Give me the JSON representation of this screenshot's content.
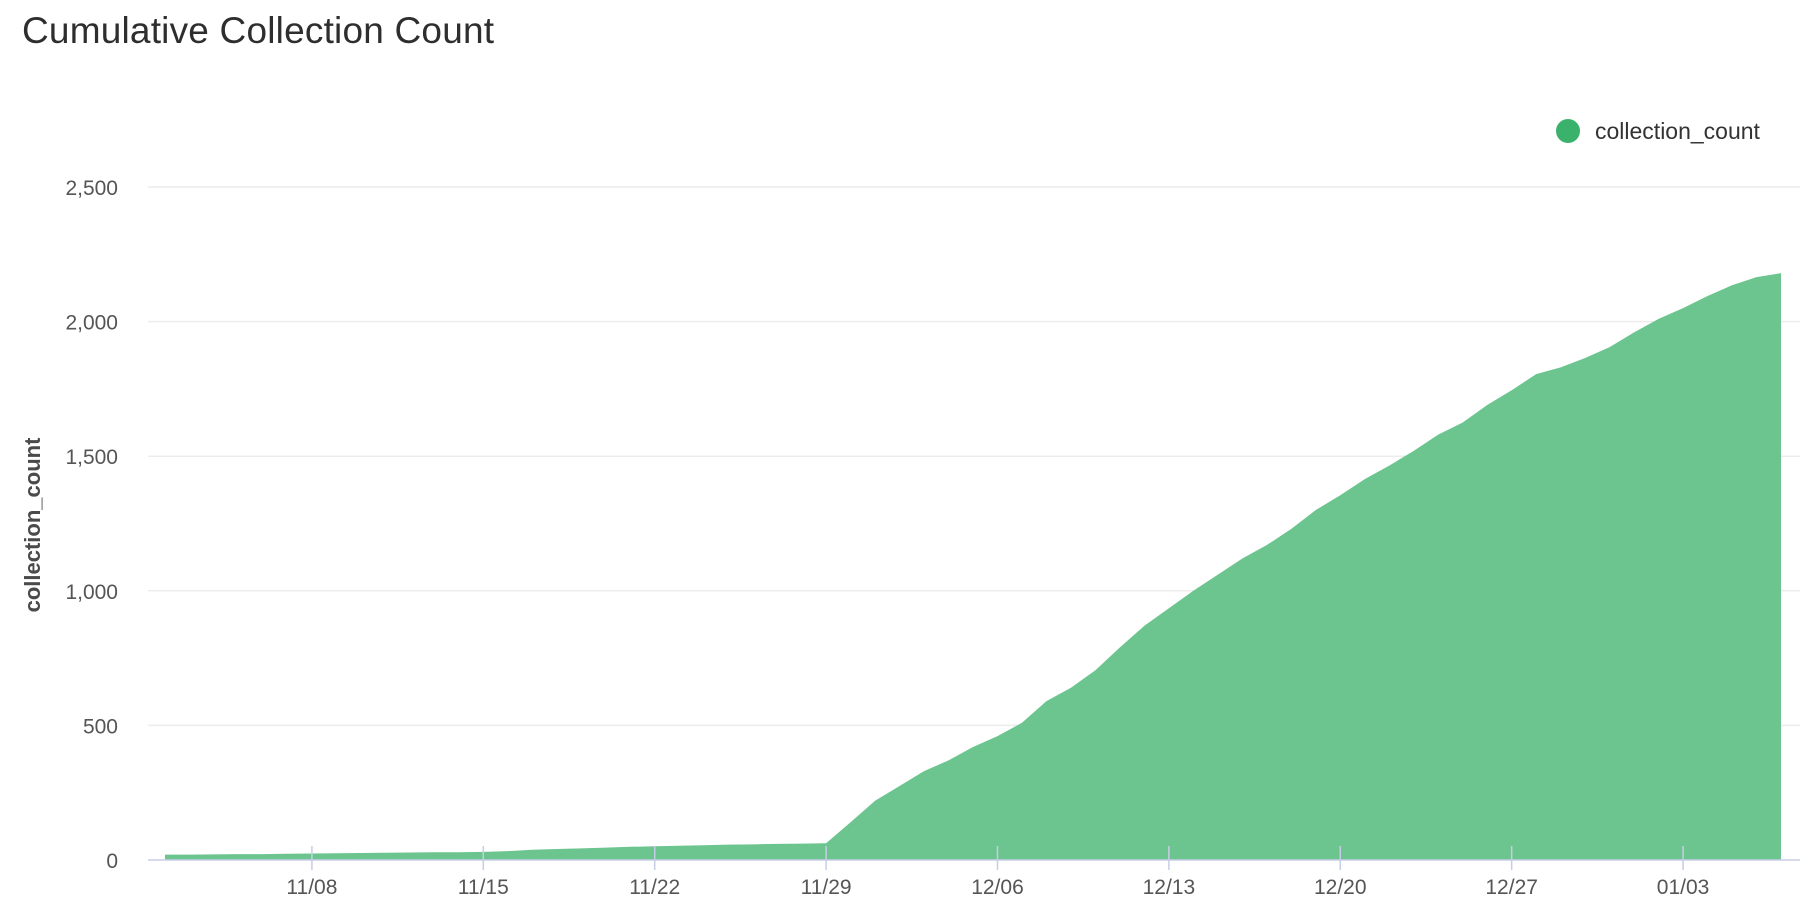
{
  "chart_data": {
    "type": "area",
    "title": "Cumulative Collection Count",
    "xlabel": "",
    "ylabel": "collection_count",
    "ylim": [
      0,
      2500
    ],
    "y_ticks": [
      {
        "value": 0,
        "label": "0"
      },
      {
        "value": 500,
        "label": "500"
      },
      {
        "value": 1000,
        "label": "1,000"
      },
      {
        "value": 1500,
        "label": "1,500"
      },
      {
        "value": 2000,
        "label": "2,000"
      },
      {
        "value": 2500,
        "label": "2,500"
      }
    ],
    "x_ticks": [
      {
        "date": "2020-11-08",
        "label": "11/08"
      },
      {
        "date": "2020-11-15",
        "label": "11/15"
      },
      {
        "date": "2020-11-22",
        "label": "11/22"
      },
      {
        "date": "2020-11-29",
        "label": "11/29"
      },
      {
        "date": "2020-12-06",
        "label": "12/06"
      },
      {
        "date": "2020-12-13",
        "label": "12/13"
      },
      {
        "date": "2020-12-20",
        "label": "12/20"
      },
      {
        "date": "2020-12-27",
        "label": "12/27"
      },
      {
        "date": "2021-01-03",
        "label": "01/03"
      }
    ],
    "grid": true,
    "legend": {
      "position": "top-right"
    },
    "colors": {
      "area": "#6cc48e",
      "legend_marker": "#3bb26b",
      "grid": "#ececec",
      "axis": "#c8cde6"
    },
    "series": [
      {
        "name": "collection_count",
        "x": [
          "2020-11-02",
          "2020-11-03",
          "2020-11-04",
          "2020-11-05",
          "2020-11-06",
          "2020-11-07",
          "2020-11-08",
          "2020-11-09",
          "2020-11-10",
          "2020-11-11",
          "2020-11-12",
          "2020-11-13",
          "2020-11-14",
          "2020-11-15",
          "2020-11-16",
          "2020-11-17",
          "2020-11-18",
          "2020-11-19",
          "2020-11-20",
          "2020-11-21",
          "2020-11-22",
          "2020-11-23",
          "2020-11-24",
          "2020-11-25",
          "2020-11-26",
          "2020-11-27",
          "2020-11-28",
          "2020-11-29",
          "2020-11-30",
          "2020-12-01",
          "2020-12-02",
          "2020-12-03",
          "2020-12-04",
          "2020-12-05",
          "2020-12-06",
          "2020-12-07",
          "2020-12-08",
          "2020-12-09",
          "2020-12-10",
          "2020-12-11",
          "2020-12-12",
          "2020-12-13",
          "2020-12-14",
          "2020-12-15",
          "2020-12-16",
          "2020-12-17",
          "2020-12-18",
          "2020-12-19",
          "2020-12-20",
          "2020-12-21",
          "2020-12-22",
          "2020-12-23",
          "2020-12-24",
          "2020-12-25",
          "2020-12-26",
          "2020-12-27",
          "2020-12-28",
          "2020-12-29",
          "2020-12-30",
          "2020-12-31",
          "2021-01-01",
          "2021-01-02",
          "2021-01-03",
          "2021-01-04",
          "2021-01-05",
          "2021-01-06",
          "2021-01-07"
        ],
        "values": [
          20,
          20,
          21,
          22,
          22,
          23,
          24,
          25,
          26,
          27,
          28,
          29,
          29,
          30,
          33,
          38,
          41,
          43,
          46,
          49,
          51,
          53,
          55,
          57,
          58,
          60,
          61,
          62,
          140,
          220,
          275,
          330,
          370,
          420,
          460,
          510,
          590,
          640,
          705,
          790,
          870,
          935,
          1000,
          1060,
          1120,
          1170,
          1230,
          1300,
          1355,
          1415,
          1465,
          1520,
          1580,
          1625,
          1690,
          1745,
          1805,
          1830,
          1865,
          1905,
          1960,
          2010,
          2050,
          2095,
          2135,
          2165,
          2180
        ]
      }
    ]
  }
}
